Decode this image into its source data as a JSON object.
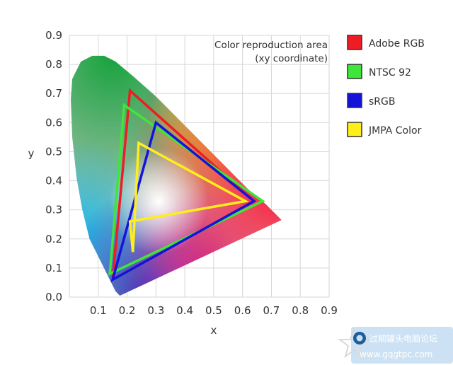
{
  "chart_data": {
    "type": "scatter",
    "annotation": [
      "Color reproduction area",
      "(xy coordinate)"
    ],
    "xlabel": "x",
    "ylabel": "y",
    "xlim": [
      0,
      0.9
    ],
    "ylim": [
      0,
      0.9
    ],
    "x_ticks": [
      "0.1",
      "0.2",
      "0.3",
      "0.4",
      "0.5",
      "0.6",
      "0.7",
      "0.8",
      "0.9"
    ],
    "y_ticks": [
      "0.0",
      "0.1",
      "0.2",
      "0.3",
      "0.4",
      "0.5",
      "0.6",
      "0.7",
      "0.8",
      "0.9"
    ],
    "grid": true,
    "legend_position": "right",
    "series": [
      {
        "name": "Adobe RGB",
        "color": "#ee1c24",
        "points": [
          [
            0.21,
            0.71
          ],
          [
            0.64,
            0.33
          ],
          [
            0.15,
            0.06
          ]
        ]
      },
      {
        "name": "NTSC 92",
        "color": "#3ee63a",
        "points": [
          [
            0.19,
            0.66
          ],
          [
            0.67,
            0.33
          ],
          [
            0.14,
            0.08
          ]
        ]
      },
      {
        "name": "sRGB",
        "color": "#1414d8",
        "points": [
          [
            0.3,
            0.6
          ],
          [
            0.64,
            0.33
          ],
          [
            0.15,
            0.06
          ]
        ]
      },
      {
        "name": "JMPA Color",
        "color": "#ffee1a",
        "points": [
          [
            0.24,
            0.53
          ],
          [
            0.61,
            0.33
          ],
          [
            0.21,
            0.26
          ],
          [
            0.22,
            0.155
          ]
        ]
      }
    ],
    "locus_points": [
      [
        0.175,
        0.005
      ],
      [
        0.16,
        0.02
      ],
      [
        0.14,
        0.06
      ],
      [
        0.11,
        0.12
      ],
      [
        0.07,
        0.2
      ],
      [
        0.045,
        0.3
      ],
      [
        0.025,
        0.41
      ],
      [
        0.01,
        0.55
      ],
      [
        0.005,
        0.68
      ],
      [
        0.01,
        0.75
      ],
      [
        0.04,
        0.81
      ],
      [
        0.08,
        0.83
      ],
      [
        0.12,
        0.83
      ],
      [
        0.16,
        0.81
      ],
      [
        0.22,
        0.76
      ],
      [
        0.3,
        0.69
      ],
      [
        0.38,
        0.61
      ],
      [
        0.46,
        0.53
      ],
      [
        0.54,
        0.45
      ],
      [
        0.62,
        0.37
      ],
      [
        0.68,
        0.32
      ],
      [
        0.735,
        0.265
      ]
    ]
  },
  "watermark": {
    "text": "过期罐头电脑论坛",
    "url": "www.gqgtpc.com"
  }
}
